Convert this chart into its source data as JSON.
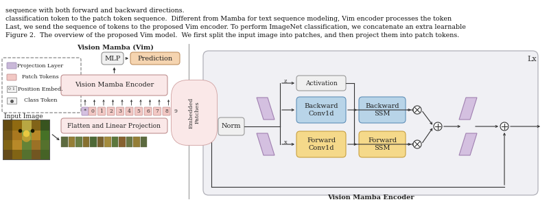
{
  "figure_caption_line1": "Figure 2.  The overview of the proposed Vim model.  We first split the input image into patches, and then project them into patch tokens.",
  "figure_caption_line2": "Last, we send the sequence of tokens to the proposed Vim encoder. To perform ImageNet classification, we concatenate an extra learnable",
  "figure_caption_line3": "classification token to the patch token sequence.  Different from Mamba for text sequence modeling, Vim encoder processes the token",
  "figure_caption_line4": "sequence with both forward and backward directions.",
  "left_panel_label": "Vision Mamba (Vim)",
  "right_panel_label": "Vision Mamba Encoder",
  "lx_label": "Lx",
  "legend_labels": [
    "Projection Layer",
    "Patch Tokens",
    "Position Embed.",
    "Class Token"
  ],
  "legend_colors": [
    "#c9b8d8",
    "#f2c8c4",
    "#e8e8e8",
    "#e8e8e8"
  ],
  "colors": {
    "forward_fill": "#f5d98a",
    "forward_stroke": "#c8a040",
    "backward_fill": "#b8d4e8",
    "backward_stroke": "#6090b8",
    "norm_fill": "#f0f0f0",
    "activation_fill": "#f0f0f0",
    "projection_fill": "#d4c0e0",
    "projection_stroke": "#a080b0",
    "vim_encoder_fill": "#fae8e8",
    "vim_encoder_stroke": "#c09090",
    "flatten_fill": "#fae8e8",
    "flatten_stroke": "#c09090",
    "mlp_fill": "#f0f0f0",
    "mlp_stroke": "#909090",
    "prediction_fill": "#f5d4b0",
    "prediction_stroke": "#c09060",
    "outer_box_fill": "#f0f0f4",
    "outer_box_stroke": "#b0b0b8",
    "dashed_box_stroke": "#888888",
    "arrow": "#333333",
    "background": "#ffffff",
    "text": "#222222"
  }
}
